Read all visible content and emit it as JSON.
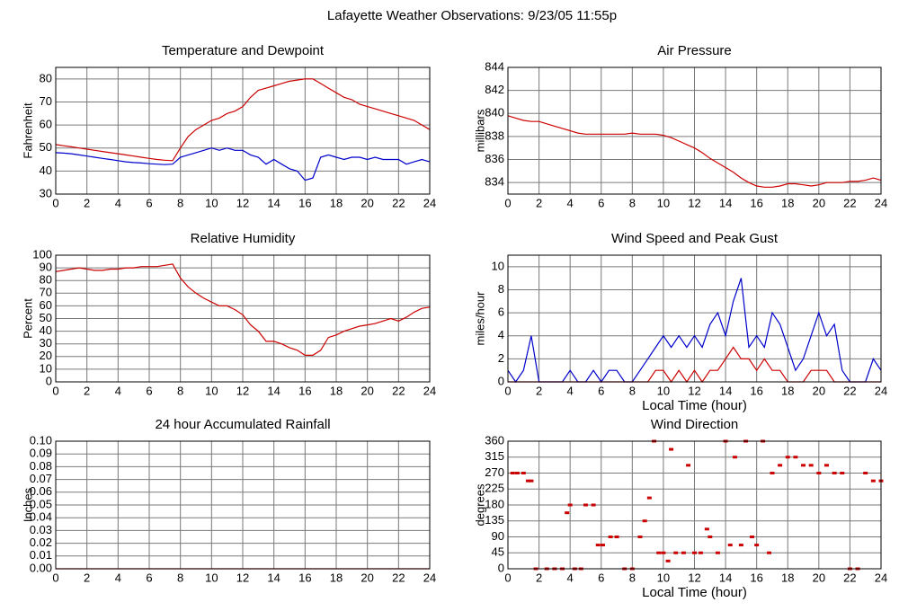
{
  "title": "Lafayette Weather Observations: 9/23/05 11:55p",
  "chart_data": [
    {
      "type": "line",
      "title": "Temperature and Dewpoint",
      "ylabel": "Fahrenheit",
      "xlim": [
        0,
        24
      ],
      "xticks": [
        0,
        2,
        4,
        6,
        8,
        10,
        12,
        14,
        16,
        18,
        20,
        22,
        24
      ],
      "ylim": [
        30,
        85
      ],
      "yticks": [
        30,
        40,
        50,
        60,
        70,
        80
      ],
      "grid": true,
      "x": [
        0,
        0.5,
        1,
        1.5,
        2,
        2.5,
        3,
        3.5,
        4,
        4.5,
        5,
        5.5,
        6,
        6.5,
        7,
        7.5,
        8,
        8.5,
        9,
        9.5,
        10,
        10.5,
        11,
        11.5,
        12,
        12.5,
        13,
        13.5,
        14,
        14.5,
        15,
        15.5,
        16,
        16.5,
        17,
        17.5,
        18,
        18.5,
        19,
        19.5,
        20,
        20.5,
        21,
        21.5,
        22,
        22.5,
        23,
        23.5,
        24
      ],
      "series": [
        {
          "color": "#cc0000",
          "values": [
            51.5,
            51,
            50.5,
            50,
            49.5,
            49,
            48.5,
            48,
            47.5,
            47,
            46.5,
            46,
            45.5,
            45,
            44.7,
            44.5,
            50,
            55,
            58,
            60,
            62,
            63,
            65,
            66,
            68,
            72,
            75,
            76,
            77,
            78,
            79,
            79.5,
            80,
            80,
            78,
            76,
            74,
            72,
            71,
            69,
            68,
            67,
            66,
            65,
            64,
            63,
            62,
            60,
            58
          ]
        },
        {
          "color": "#0000cc",
          "values": [
            48,
            47.8,
            47.5,
            47,
            46.5,
            46,
            45.5,
            45,
            44.5,
            44,
            43.7,
            43.5,
            43.2,
            43,
            42.8,
            43,
            46,
            47,
            48,
            49,
            50,
            49,
            50,
            49,
            49,
            47,
            46,
            43,
            45,
            43,
            41,
            40,
            36,
            37,
            46,
            47,
            46,
            45,
            46,
            46,
            45,
            46,
            45,
            45,
            45,
            43,
            44,
            45,
            44
          ]
        }
      ]
    },
    {
      "type": "line",
      "title": "Air Pressure",
      "ylabel": "millibars",
      "xlim": [
        0,
        24
      ],
      "xticks": [
        0,
        2,
        4,
        6,
        8,
        10,
        12,
        14,
        16,
        18,
        20,
        22,
        24
      ],
      "ylim": [
        833,
        844
      ],
      "yticks": [
        834,
        836,
        838,
        840,
        842,
        844
      ],
      "grid": true,
      "x": [
        0,
        0.5,
        1,
        1.5,
        2,
        2.5,
        3,
        3.5,
        4,
        4.5,
        5,
        5.5,
        6,
        6.5,
        7,
        7.5,
        8,
        8.5,
        9,
        9.5,
        10,
        10.5,
        11,
        11.5,
        12,
        12.5,
        13,
        13.5,
        14,
        14.5,
        15,
        15.5,
        16,
        16.5,
        17,
        17.5,
        18,
        18.5,
        19,
        19.5,
        20,
        20.5,
        21,
        21.5,
        22,
        22.5,
        23,
        23.5,
        24
      ],
      "series": [
        {
          "color": "#cc0000",
          "values": [
            839.8,
            839.6,
            839.4,
            839.3,
            839.3,
            839.1,
            838.9,
            838.7,
            838.5,
            838.3,
            838.2,
            838.2,
            838.2,
            838.2,
            838.2,
            838.2,
            838.3,
            838.2,
            838.2,
            838.2,
            838.1,
            837.9,
            837.6,
            837.3,
            837.0,
            836.6,
            836.1,
            835.7,
            835.3,
            834.9,
            834.4,
            834.0,
            833.7,
            833.6,
            833.6,
            833.7,
            833.9,
            833.9,
            833.8,
            833.7,
            833.8,
            834.0,
            834.0,
            834.0,
            834.1,
            834.1,
            834.2,
            834.4,
            834.2
          ]
        }
      ]
    },
    {
      "type": "line",
      "title": "Relative Humidity",
      "ylabel": "Percent",
      "xlim": [
        0,
        24
      ],
      "xticks": [
        0,
        2,
        4,
        6,
        8,
        10,
        12,
        14,
        16,
        18,
        20,
        22,
        24
      ],
      "ylim": [
        0,
        100
      ],
      "yticks": [
        0,
        10,
        20,
        30,
        40,
        50,
        60,
        70,
        80,
        90,
        100
      ],
      "grid": true,
      "x": [
        0,
        0.5,
        1,
        1.5,
        2,
        2.5,
        3,
        3.5,
        4,
        4.5,
        5,
        5.5,
        6,
        6.5,
        7,
        7.5,
        8,
        8.5,
        9,
        9.5,
        10,
        10.5,
        11,
        11.5,
        12,
        12.5,
        13,
        13.5,
        14,
        14.5,
        15,
        15.5,
        16,
        16.5,
        17,
        17.5,
        18,
        18.5,
        19,
        19.5,
        20,
        20.5,
        21,
        21.5,
        22,
        22.5,
        23,
        23.5,
        24
      ],
      "series": [
        {
          "color": "#cc0000",
          "values": [
            87,
            88,
            89,
            90,
            89,
            88,
            88,
            89,
            89,
            90,
            90,
            91,
            91,
            91,
            92,
            93,
            82,
            75,
            70,
            66,
            63,
            60,
            60,
            57,
            53,
            45,
            40,
            32,
            32,
            30,
            27,
            25,
            21,
            21,
            25,
            35,
            37,
            40,
            42,
            44,
            45,
            46,
            48,
            50,
            48,
            51,
            55,
            58,
            59
          ]
        }
      ]
    },
    {
      "type": "line",
      "title": "Wind Speed and Peak Gust",
      "ylabel": "miles/hour",
      "xlabel": "Local Time (hour)",
      "xlim": [
        0,
        24
      ],
      "xticks": [
        0,
        2,
        4,
        6,
        8,
        10,
        12,
        14,
        16,
        18,
        20,
        22,
        24
      ],
      "ylim": [
        0,
        11
      ],
      "yticks": [
        0,
        2,
        4,
        6,
        8,
        10
      ],
      "grid": true,
      "x": [
        0,
        0.5,
        1,
        1.5,
        2,
        2.5,
        3,
        3.5,
        4,
        4.5,
        5,
        5.5,
        6,
        6.5,
        7,
        7.5,
        8,
        8.5,
        9,
        9.5,
        10,
        10.5,
        11,
        11.5,
        12,
        12.5,
        13,
        13.5,
        14,
        14.5,
        15,
        15.5,
        16,
        16.5,
        17,
        17.5,
        18,
        18.5,
        19,
        19.5,
        20,
        20.5,
        21,
        21.5,
        22,
        22.5,
        23,
        23.5,
        24
      ],
      "series": [
        {
          "color": "#0000cc",
          "values": [
            1,
            0,
            1,
            4,
            0,
            0,
            0,
            0,
            1,
            0,
            0,
            1,
            0,
            1,
            1,
            0,
            0,
            1,
            2,
            3,
            4,
            3,
            4,
            3,
            4,
            3,
            5,
            6,
            4,
            7,
            9,
            3,
            4,
            3,
            6,
            5,
            3,
            1,
            2,
            4,
            6,
            4,
            5,
            1,
            0,
            0,
            0,
            2,
            1
          ]
        },
        {
          "color": "#cc0000",
          "values": [
            0,
            0,
            0,
            0,
            0,
            0,
            0,
            0,
            0,
            0,
            0,
            0,
            0,
            0,
            0,
            0,
            0,
            0,
            0,
            1,
            1,
            0,
            1,
            0,
            1,
            0,
            1,
            1,
            2,
            3,
            2,
            2,
            1,
            2,
            1,
            1,
            0,
            0,
            0,
            1,
            1,
            1,
            0,
            0,
            0,
            0,
            0,
            0,
            0
          ]
        }
      ]
    },
    {
      "type": "line",
      "title": "24 hour Accumulated Rainfall",
      "ylabel": "Inches",
      "xlim": [
        0,
        24
      ],
      "xticks": [
        0,
        2,
        4,
        6,
        8,
        10,
        12,
        14,
        16,
        18,
        20,
        22,
        24
      ],
      "ylim": [
        0,
        0.1
      ],
      "yticks": [
        {
          "value": 0,
          "label": "0.00"
        },
        {
          "value": 0.01,
          "label": "0.01"
        },
        {
          "value": 0.02,
          "label": "0.02"
        },
        {
          "value": 0.03,
          "label": "0.03"
        },
        {
          "value": 0.04,
          "label": "0.04"
        },
        {
          "value": 0.05,
          "label": "0.05"
        },
        {
          "value": 0.06,
          "label": "0.06"
        },
        {
          "value": 0.07,
          "label": "0.07"
        },
        {
          "value": 0.08,
          "label": "0.08"
        },
        {
          "value": 0.09,
          "label": "0.09"
        },
        {
          "value": 0.1,
          "label": "0.10"
        }
      ],
      "grid": true,
      "x": [
        0,
        24
      ],
      "series": [
        {
          "color": "#cc0000",
          "values": [
            0,
            0
          ]
        }
      ]
    },
    {
      "type": "scatter",
      "title": "Wind Direction",
      "ylabel": "degrees",
      "xlabel": "Local Time (hour)",
      "xlim": [
        0,
        24
      ],
      "xticks": [
        0,
        2,
        4,
        6,
        8,
        10,
        12,
        14,
        16,
        18,
        20,
        22,
        24
      ],
      "ylim": [
        0,
        360
      ],
      "yticks": [
        0,
        45,
        90,
        135,
        180,
        225,
        270,
        315,
        360
      ],
      "grid": true,
      "x": [
        0.3,
        0.6,
        1,
        1.3,
        1.5,
        1.8,
        2.5,
        3,
        3.5,
        3.8,
        4,
        4.3,
        4.7,
        5,
        5.5,
        5.8,
        6.1,
        6.6,
        7,
        7.5,
        8,
        8.5,
        8.8,
        9.1,
        9.4,
        9.7,
        10,
        10.3,
        10.5,
        10.8,
        11.3,
        11.6,
        12,
        12.4,
        12.8,
        13,
        13.5,
        14,
        14.3,
        14.6,
        15,
        15.3,
        15.7,
        16,
        16.4,
        16.8,
        17,
        17.5,
        18,
        18.5,
        19,
        19.5,
        20,
        20.5,
        21,
        21.5,
        22,
        22.5,
        23,
        23.5,
        24
      ],
      "series": [
        {
          "color": "#cc0000",
          "values": [
            270,
            270,
            270,
            248,
            248,
            0,
            0,
            0,
            0,
            158,
            180,
            0,
            0,
            180,
            180,
            67,
            67,
            90,
            90,
            0,
            0,
            90,
            135,
            200,
            360,
            45,
            45,
            22,
            337,
            45,
            45,
            292,
            45,
            45,
            112,
            90,
            45,
            360,
            67,
            315,
            67,
            360,
            90,
            67,
            360,
            45,
            270,
            292,
            315,
            315,
            292,
            292,
            270,
            292,
            270,
            270,
            0,
            0,
            270,
            248,
            248
          ]
        }
      ]
    }
  ]
}
